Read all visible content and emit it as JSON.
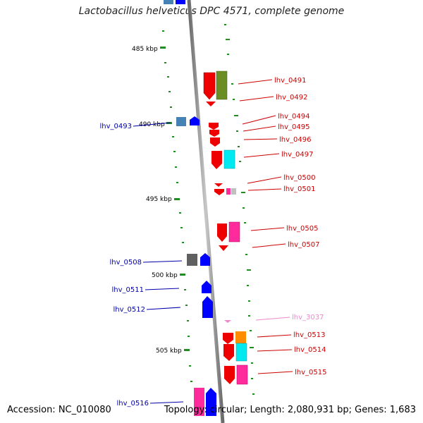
{
  "title": "Lactobacillus helveticus DPC 4571, complete genome",
  "accession": "Accession: NC_010080",
  "topology": "Topology: circular; Length: 2,080,931 bp; Genes: 1,683",
  "scale_labels": [
    "485 kbp",
    "490 kbp",
    "495 kbp",
    "500 kbp",
    "505 kbp"
  ],
  "genes_right": [
    {
      "label": "lhv_0491",
      "color": "#cc0000"
    },
    {
      "label": "lhv_0492",
      "color": "#cc0000"
    },
    {
      "label": "lhv_0494",
      "color": "#cc0000"
    },
    {
      "label": "lhv_0495",
      "color": "#cc0000"
    },
    {
      "label": "lhv_0496",
      "color": "#cc0000"
    },
    {
      "label": "lhv_0497",
      "color": "#cc0000"
    },
    {
      "label": "lhv_0500",
      "color": "#cc0000"
    },
    {
      "label": "lhv_0501",
      "color": "#cc0000"
    },
    {
      "label": "lhv_0505",
      "color": "#cc0000"
    },
    {
      "label": "lhv_0507",
      "color": "#cc0000"
    },
    {
      "label": "lhv_3037",
      "color": "#ee88cc"
    },
    {
      "label": "lhv_0513",
      "color": "#cc0000"
    },
    {
      "label": "lhv_0514",
      "color": "#cc0000"
    },
    {
      "label": "lhv_0515",
      "color": "#cc0000"
    }
  ],
  "genes_left": [
    {
      "label": "lhv_0493",
      "color": "#0000aa"
    },
    {
      "label": "lhv_0508",
      "color": "#0000aa"
    },
    {
      "label": "lhv_0511",
      "color": "#0000aa"
    },
    {
      "label": "lhv_0512",
      "color": "#0000aa"
    },
    {
      "label": "lhv_0516",
      "color": "#0000aa"
    }
  ],
  "colors": {
    "forward_strand": "#0000ff",
    "reverse_strand": "#ff0000",
    "backbone": "#808080",
    "tick": "#228b22",
    "cog_olive": "#6b8e23",
    "cog_cyan": "#00ffff",
    "cog_pink": "#ff2a9c",
    "cog_grey": "#606060",
    "cog_orange": "#ff8c00",
    "cog_steel": "#4682b4"
  }
}
